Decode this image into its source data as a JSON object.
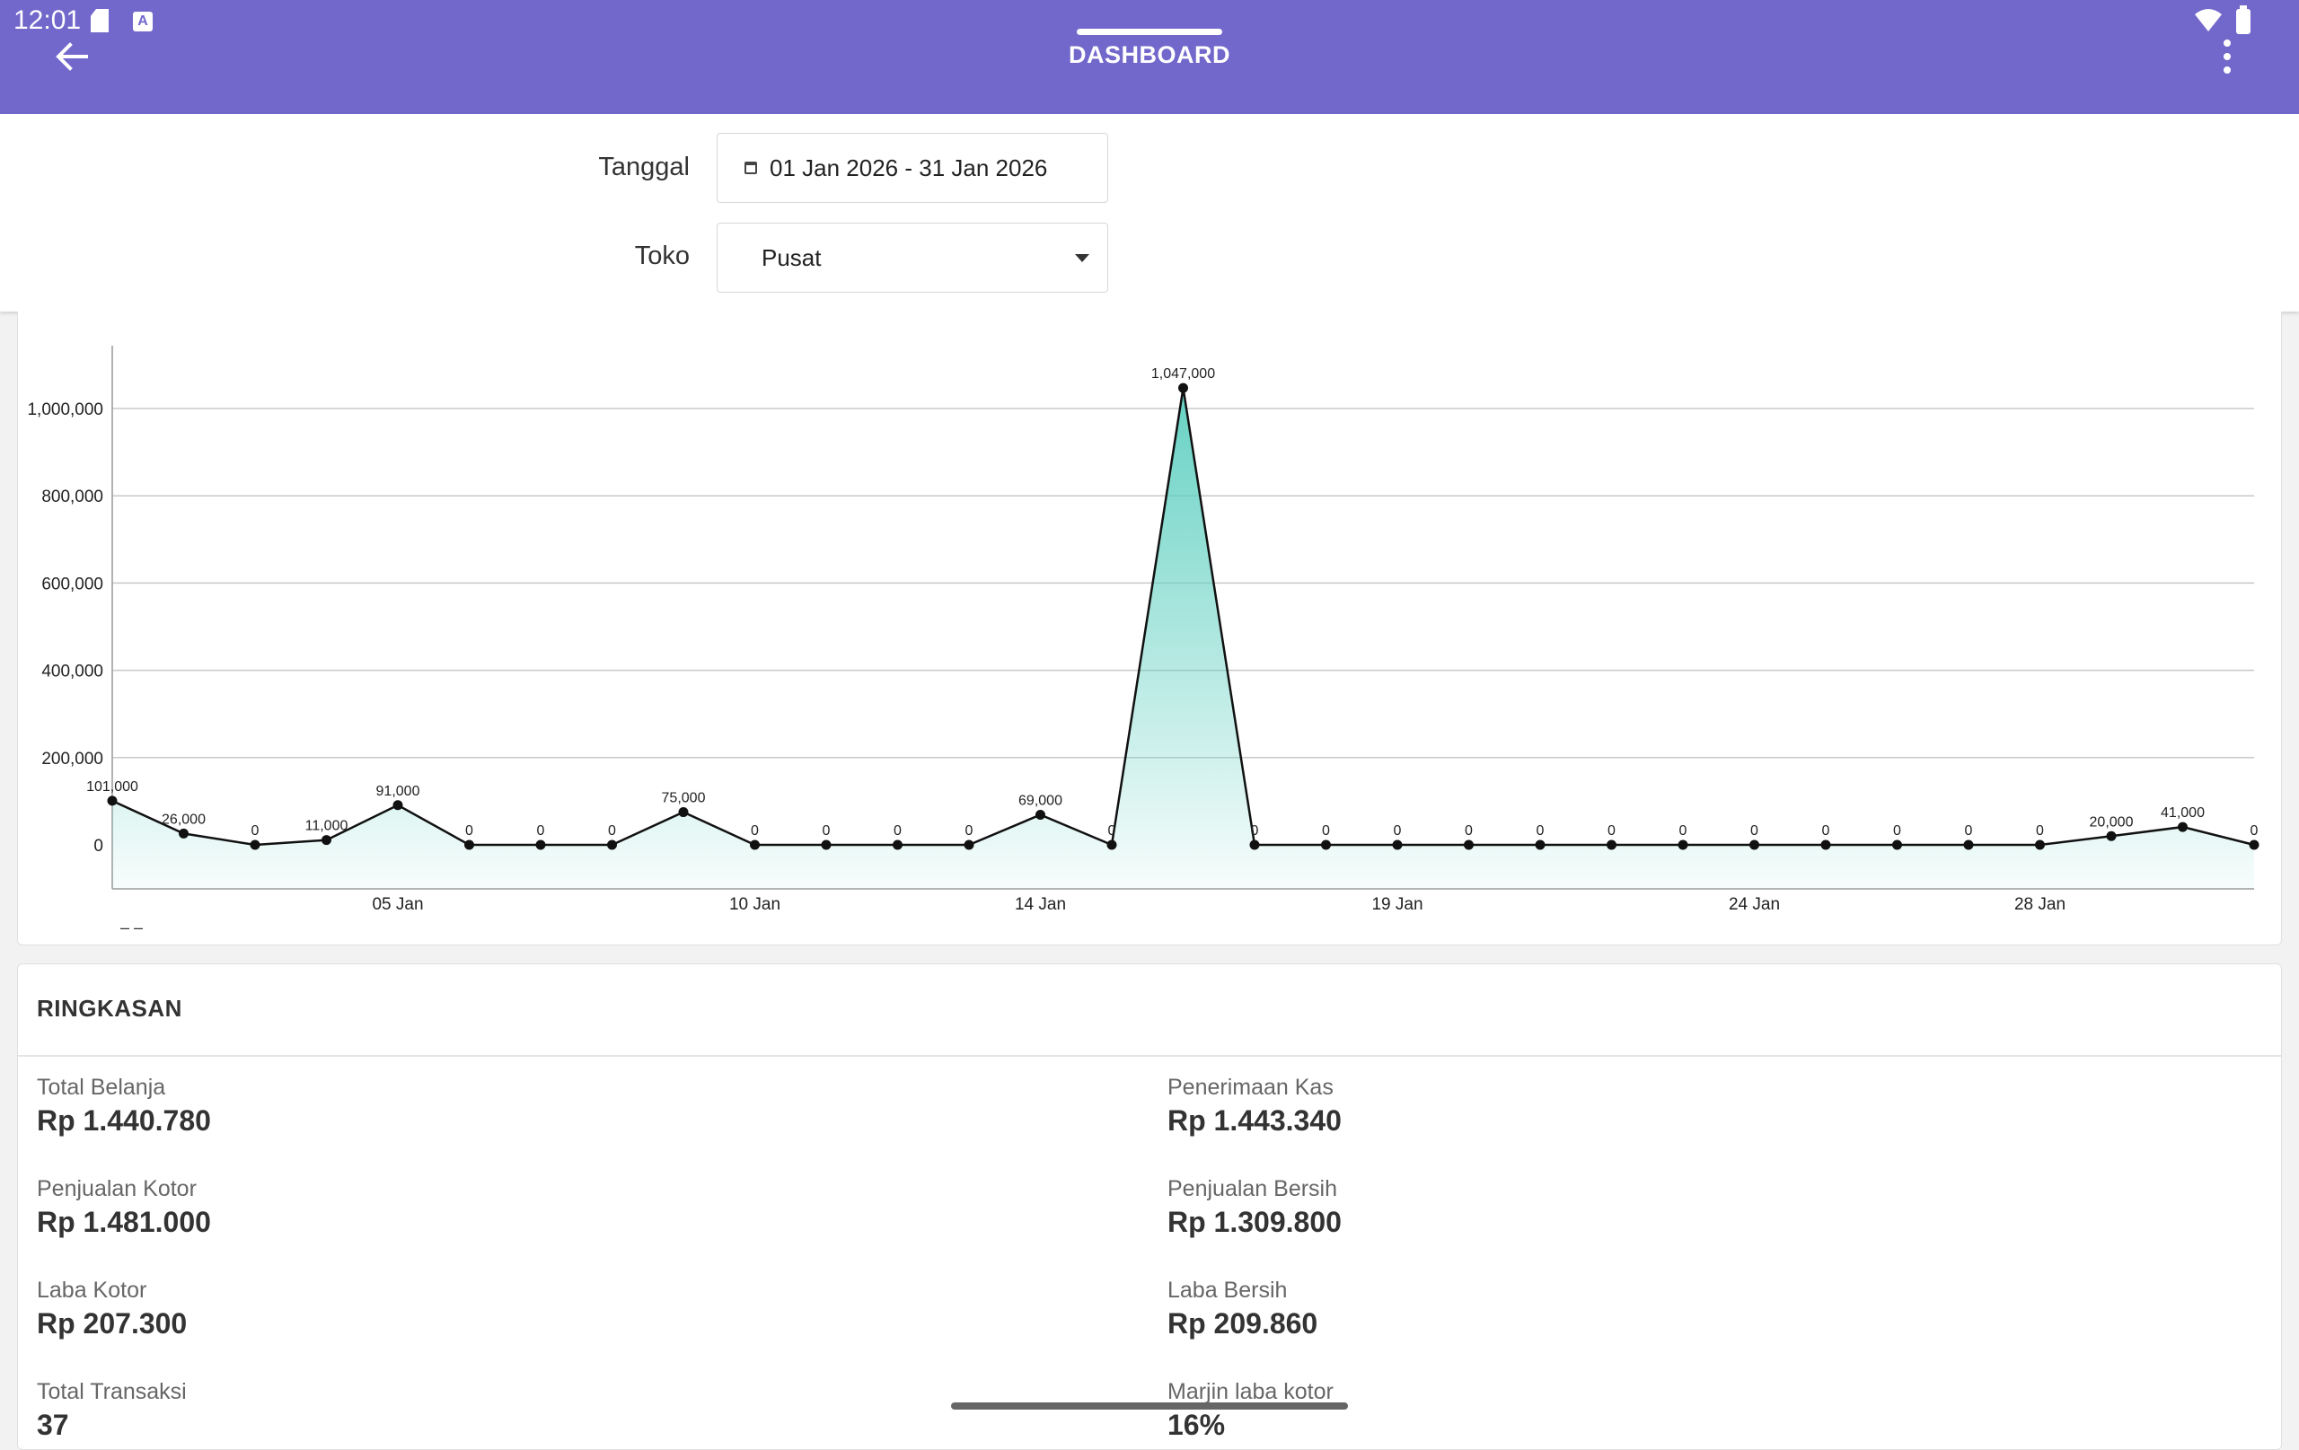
{
  "status_bar": {
    "time": "12:01",
    "sd_icon": "sd-card-icon",
    "a_icon": "A"
  },
  "app_bar": {
    "title": "DASHBOARD",
    "back_icon": "arrow-left-icon",
    "menu_icon": "more-vert-icon",
    "color": "#7268cb"
  },
  "filters": {
    "date_label": "Tanggal",
    "date_value": "01 Jan 2026 - 31 Jan 2026",
    "store_label": "Toko",
    "store_value": "Pusat"
  },
  "chart_data": {
    "type": "area",
    "x": [
      "01 Jan",
      "02 Jan",
      "03 Jan",
      "04 Jan",
      "05 Jan",
      "06 Jan",
      "07 Jan",
      "08 Jan",
      "09 Jan",
      "10 Jan",
      "11 Jan",
      "12 Jan",
      "13 Jan",
      "14 Jan",
      "15 Jan",
      "16 Jan",
      "17 Jan",
      "18 Jan",
      "19 Jan",
      "20 Jan",
      "21 Jan",
      "22 Jan",
      "23 Jan",
      "24 Jan",
      "25 Jan",
      "26 Jan",
      "27 Jan",
      "28 Jan",
      "29 Jan",
      "30 Jan",
      "31 Jan"
    ],
    "values": [
      101000,
      26000,
      0,
      11000,
      91000,
      0,
      0,
      0,
      75000,
      0,
      0,
      0,
      0,
      69000,
      0,
      1047000,
      0,
      0,
      0,
      0,
      0,
      0,
      0,
      0,
      0,
      0,
      0,
      0,
      20000,
      41000,
      0
    ],
    "data_labels": [
      "101,000",
      "26,000",
      "0",
      "11,000",
      "91,000",
      "0",
      "0",
      "0",
      "75,000",
      "0",
      "0",
      "0",
      "0",
      "69,000",
      "0",
      "1,047,000",
      "0",
      "0",
      "0",
      "0",
      "0",
      "0",
      "0",
      "0",
      "0",
      "0",
      "0",
      "0",
      "20,000",
      "41,000",
      "0"
    ],
    "x_ticks": [
      "05 Jan",
      "10 Jan",
      "14 Jan",
      "19 Jan",
      "24 Jan",
      "28 Jan"
    ],
    "y_ticks": [
      "0",
      "200,000",
      "400,000",
      "600,000",
      "800,000",
      "1,000,000"
    ],
    "ylim": [
      0,
      1100000
    ],
    "legend_stub": "– –",
    "fill_color": "#5ecfc0",
    "line_color": "#111111"
  },
  "summary": {
    "title": "RINGKASAN",
    "left": [
      {
        "label": "Total Belanja",
        "value": "Rp 1.440.780"
      },
      {
        "label": "Penjualan Kotor",
        "value": "Rp 1.481.000"
      },
      {
        "label": "Laba Kotor",
        "value": "Rp 207.300"
      },
      {
        "label": "Total Transaksi",
        "value": "37"
      }
    ],
    "right": [
      {
        "label": "Penerimaan Kas",
        "value": "Rp 1.443.340"
      },
      {
        "label": "Penjualan Bersih",
        "value": "Rp 1.309.800"
      },
      {
        "label": "Laba Bersih",
        "value": "Rp 209.860"
      },
      {
        "label": "Marjin laba kotor",
        "value": "16%"
      }
    ]
  }
}
